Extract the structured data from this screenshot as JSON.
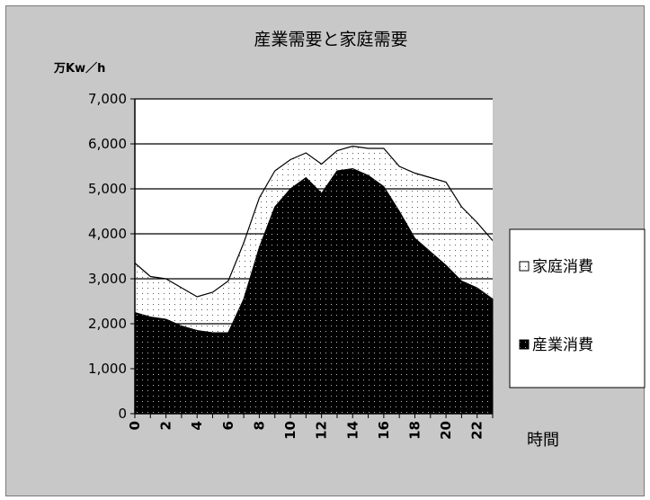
{
  "chart_data": {
    "type": "area",
    "stacked": true,
    "title": "産業需要と家庭需要",
    "unit_label": "万Kw／h",
    "xlabel": "時間",
    "ylabel": "",
    "ylim": [
      0,
      7000
    ],
    "y_ticks": [
      0,
      1000,
      2000,
      3000,
      4000,
      5000,
      6000,
      7000
    ],
    "y_tick_labels": [
      "0",
      "1,000",
      "2,000",
      "3,000",
      "4,000",
      "5,000",
      "6,000",
      "7,000"
    ],
    "x": [
      0,
      1,
      2,
      3,
      4,
      5,
      6,
      7,
      8,
      9,
      10,
      11,
      12,
      13,
      14,
      15,
      16,
      17,
      18,
      19,
      20,
      21,
      22,
      23
    ],
    "x_tick_labels": [
      "0",
      "2",
      "4",
      "6",
      "8",
      "10",
      "12",
      "14",
      "16",
      "18",
      "20",
      "22"
    ],
    "x_tick_values": [
      0,
      2,
      4,
      6,
      8,
      10,
      12,
      14,
      16,
      18,
      20,
      22
    ],
    "grid": true,
    "legend_position": "right",
    "series": [
      {
        "name": "産業消費",
        "fill": "black-dotted",
        "values": [
          2250,
          2150,
          2100,
          1950,
          1850,
          1800,
          1800,
          2550,
          3700,
          4600,
          5000,
          5250,
          4900,
          5400,
          5450,
          5300,
          5050,
          4500,
          3900,
          3600,
          3300,
          2950,
          2800,
          2550
        ]
      },
      {
        "name": "家庭消費",
        "fill": "white-dotted",
        "values": [
          1100,
          900,
          900,
          850,
          750,
          900,
          1150,
          1250,
          1100,
          800,
          650,
          550,
          650,
          450,
          500,
          600,
          850,
          1000,
          1450,
          1650,
          1850,
          1650,
          1450,
          1300
        ]
      }
    ],
    "colors": {
      "frame_bg": "#c8c8c8",
      "plot_bg": "#ffffff",
      "series_dark": "#000000",
      "series_light": "#ffffff",
      "grid": "#000000"
    }
  }
}
